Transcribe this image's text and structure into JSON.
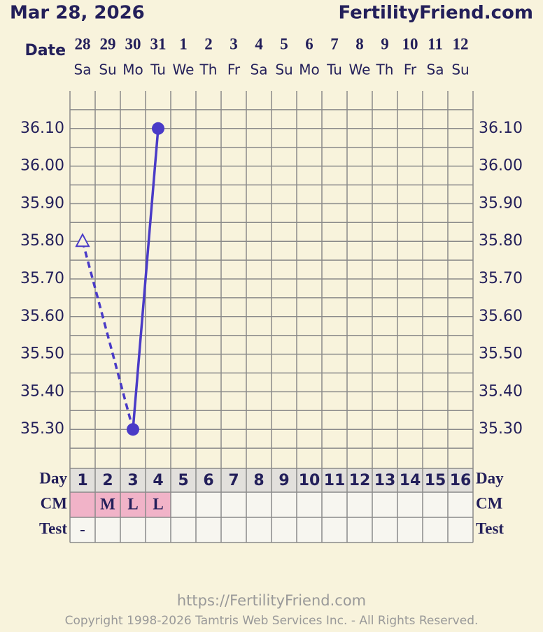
{
  "chart_data": {
    "type": "line",
    "title": "Mar 28, 2026",
    "brand": "FertilityFriend.com",
    "date_label": "Date",
    "dates": [
      "28",
      "29",
      "30",
      "31",
      "1",
      "2",
      "3",
      "4",
      "5",
      "6",
      "7",
      "8",
      "9",
      "10",
      "11",
      "12"
    ],
    "weekdays": [
      "Sa",
      "Su",
      "Mo",
      "Tu",
      "We",
      "Th",
      "Fr",
      "Sa",
      "Su",
      "Mo",
      "Tu",
      "We",
      "Th",
      "Fr",
      "Sa",
      "Su"
    ],
    "day_label": "Day",
    "days": [
      1,
      2,
      3,
      4,
      5,
      6,
      7,
      8,
      9,
      10,
      11,
      12,
      13,
      14,
      15,
      16
    ],
    "cm_label": "CM",
    "cm": [
      null,
      "M",
      "L",
      "L",
      null,
      null,
      null,
      null,
      null,
      null,
      null,
      null,
      null,
      null,
      null,
      null
    ],
    "cm_highlight": [
      true,
      true,
      true,
      true,
      false,
      false,
      false,
      false,
      false,
      false,
      false,
      false,
      false,
      false,
      false,
      false
    ],
    "test_label": "Test",
    "test": [
      "-",
      null,
      null,
      null,
      null,
      null,
      null,
      null,
      null,
      null,
      null,
      null,
      null,
      null,
      null,
      null
    ],
    "color": "#4a3bc7",
    "values": [
      35.8,
      null,
      35.3,
      36.1,
      null,
      null,
      null,
      null,
      null,
      null,
      null,
      null,
      null,
      null,
      null,
      null
    ],
    "markers": [
      "open-triangle",
      null,
      "circle",
      "circle",
      null,
      null,
      null,
      null,
      null,
      null,
      null,
      null,
      null,
      null,
      null,
      null
    ],
    "ylim": [
      35.2,
      36.2
    ],
    "yticks": [
      {
        "value": 35.3,
        "label": "35.30"
      },
      {
        "value": 35.4,
        "label": "35.40"
      },
      {
        "value": 35.5,
        "label": "35.50"
      },
      {
        "value": 35.6,
        "label": "35.60"
      },
      {
        "value": 35.7,
        "label": "35.70"
      },
      {
        "value": 35.8,
        "label": "35.80"
      },
      {
        "value": 35.9,
        "label": "35.90"
      },
      {
        "value": 36.0,
        "label": "36.00"
      },
      {
        "value": 36.1,
        "label": "36.10"
      }
    ],
    "grid": true,
    "url": "https://FertilityFriend.com",
    "copyright": "Copyright 1998-2026 Tamtris Web Services Inc. - All Rights Reserved."
  }
}
